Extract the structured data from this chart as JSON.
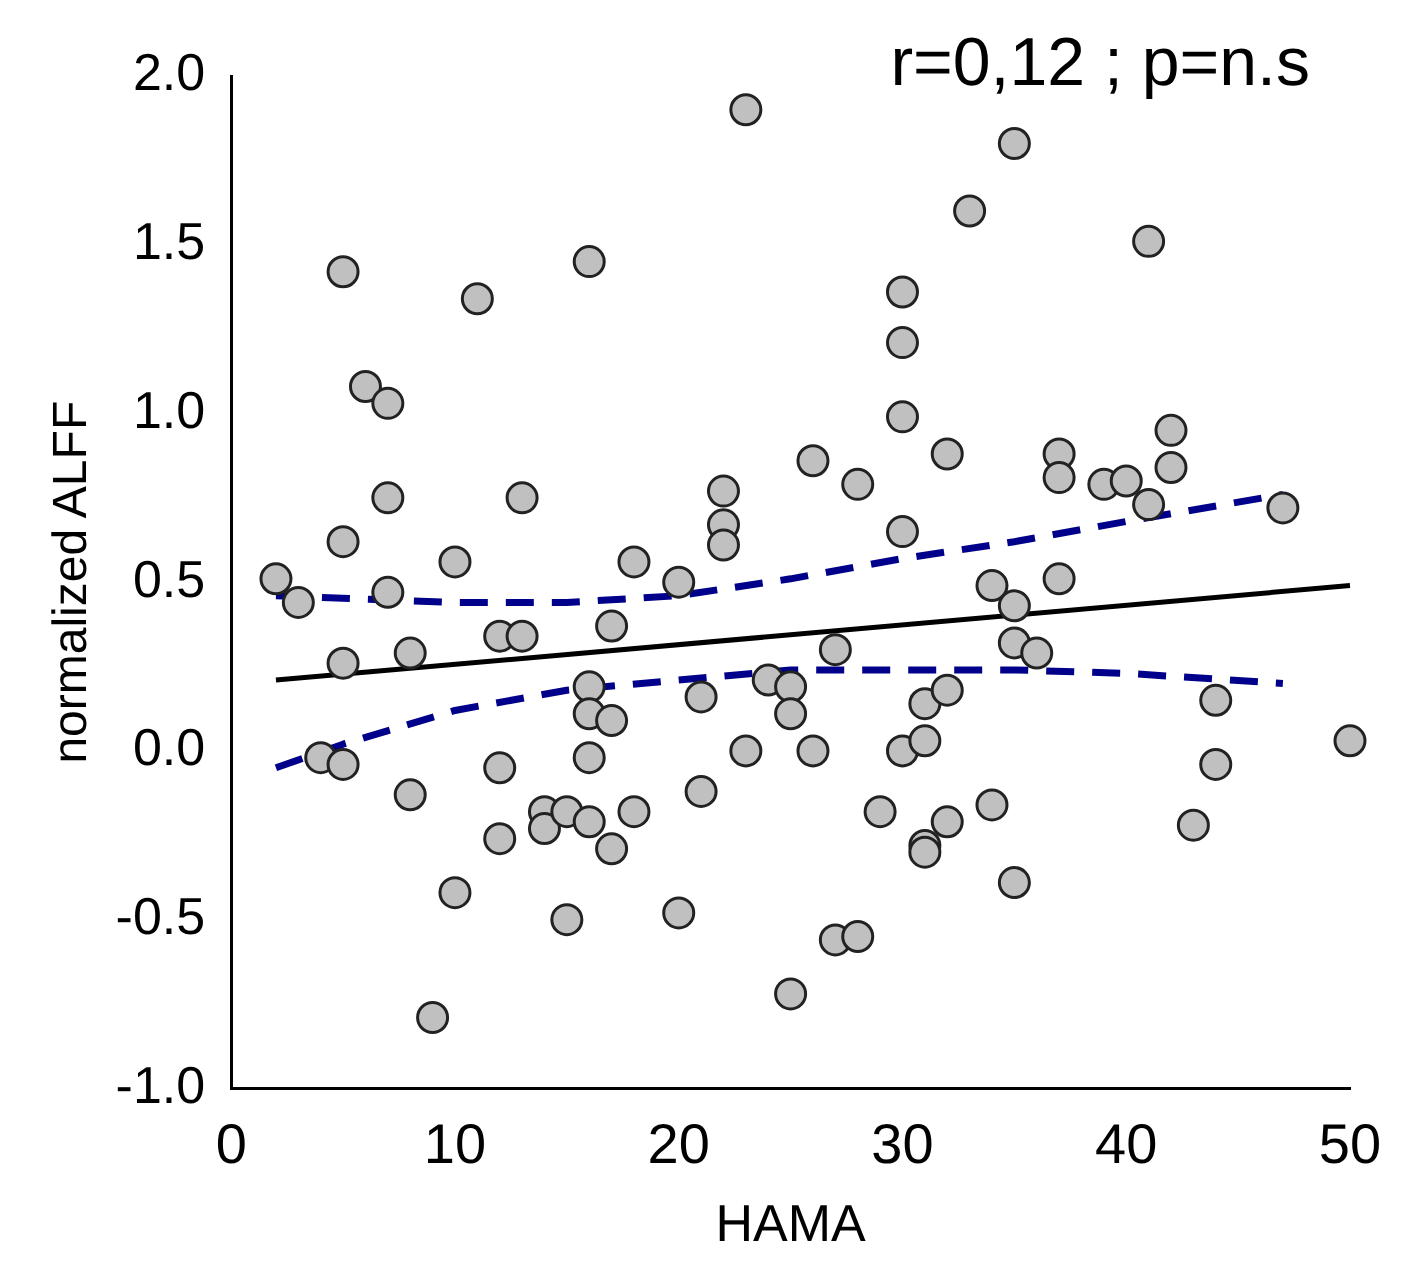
{
  "chart_data": {
    "type": "scatter",
    "xlabel": "HAMA",
    "ylabel": "normalized ALFF",
    "annotations": [
      "r=0,12 ; p=n.s"
    ],
    "xlim": [
      0,
      50
    ],
    "ylim": [
      -1,
      2
    ],
    "xticks": [
      0,
      10,
      20,
      30,
      40,
      50
    ],
    "yticks": [
      {
        "value": -1,
        "label": "-1.0"
      },
      -0.5,
      {
        "value": 0,
        "label": "0.0"
      },
      0.5,
      {
        "value": 1,
        "label": "1.0"
      },
      1.5,
      {
        "value": 2,
        "label": "2.0"
      }
    ],
    "grid": false,
    "legend": false,
    "marker": "circle",
    "series": [
      {
        "color": "#c0c0c0",
        "x": [
          2,
          3,
          4,
          5,
          5,
          5,
          5,
          6,
          7,
          7,
          7,
          8,
          8,
          10,
          10,
          9,
          11,
          12,
          12,
          12,
          13,
          13,
          14,
          14,
          15,
          15,
          16,
          16,
          16,
          16,
          16,
          17,
          17,
          17,
          18,
          18,
          20,
          20,
          21,
          21,
          22,
          22,
          22,
          23,
          23,
          24,
          25,
          25,
          25,
          26,
          26,
          27,
          27,
          28,
          28,
          29,
          30,
          30,
          30,
          30,
          30,
          31,
          31,
          31,
          31,
          32,
          32,
          32,
          33,
          34,
          34,
          35,
          35,
          35,
          35,
          36,
          37,
          37,
          37,
          39,
          40,
          41,
          41,
          42,
          42,
          43,
          44,
          44,
          47,
          50
        ],
        "values": [
          0.51,
          0.44,
          -0.02,
          1.42,
          0.62,
          0.26,
          -0.04,
          1.08,
          1.03,
          0.75,
          0.47,
          0.29,
          -0.13,
          0.56,
          -0.42,
          -0.79,
          1.34,
          0.34,
          -0.05,
          -0.26,
          0.75,
          0.34,
          -0.18,
          -0.23,
          -0.18,
          -0.5,
          1.45,
          0.19,
          0.11,
          -0.02,
          -0.21,
          0.37,
          0.09,
          -0.29,
          0.56,
          -0.18,
          0.5,
          -0.48,
          0.16,
          -0.12,
          0.77,
          0.67,
          0.61,
          1.9,
          0,
          0.21,
          0.19,
          0.11,
          -0.72,
          0.86,
          0,
          0.3,
          -0.56,
          0.79,
          -0.55,
          -0.18,
          1.36,
          1.21,
          0.99,
          0.65,
          0,
          0.14,
          0.03,
          -0.28,
          -0.3,
          0.88,
          0.18,
          -0.21,
          1.6,
          -0.16,
          0.49,
          1.8,
          0.43,
          0.32,
          -0.39,
          0.29,
          0.88,
          0.81,
          0.51,
          0.79,
          0.8,
          1.51,
          0.73,
          0.95,
          0.84,
          -0.22,
          0.15,
          -0.04,
          0.72,
          0.03
        ]
      },
      {
        "type": "line",
        "color": "#000000",
        "line_style": "solid",
        "marker": "none",
        "x": [
          2,
          50
        ],
        "values": [
          0.21,
          0.49
        ]
      },
      {
        "type": "line",
        "color": "#00008b",
        "line_style": "dashed",
        "marker": "none",
        "x": [
          2,
          10,
          15,
          20,
          25,
          30,
          35,
          40,
          47
        ],
        "values": [
          0.46,
          0.44,
          0.44,
          0.46,
          0.51,
          0.57,
          0.62,
          0.68,
          0.76
        ]
      },
      {
        "type": "line",
        "color": "#00008b",
        "line_style": "dashed",
        "marker": "none",
        "x": [
          2,
          5,
          10,
          15,
          20,
          25,
          30,
          35,
          40,
          47
        ],
        "values": [
          -0.05,
          0.02,
          0.12,
          0.18,
          0.21,
          0.24,
          0.24,
          0.24,
          0.23,
          0.2
        ]
      }
    ]
  }
}
